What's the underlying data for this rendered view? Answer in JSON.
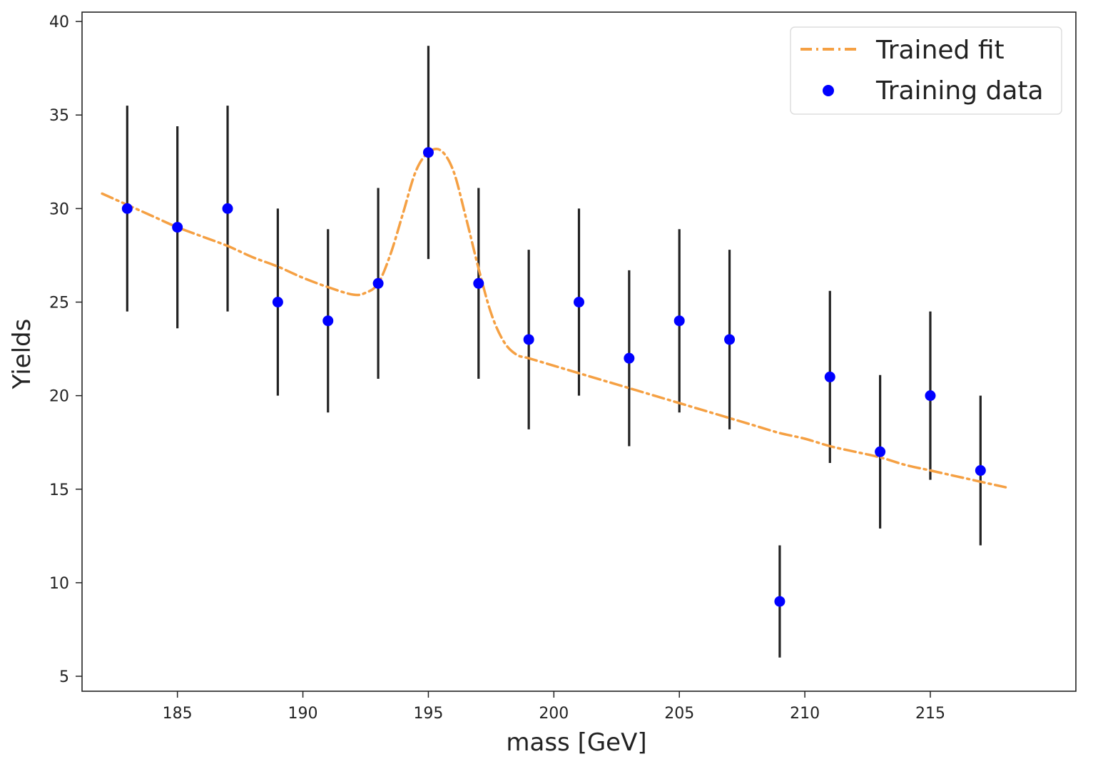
{
  "chart_data": {
    "type": "scatter",
    "title": "",
    "xlabel": "mass [GeV]",
    "ylabel": "Yields",
    "xlim": [
      181.2,
      220.8
    ],
    "ylim": [
      4.2,
      40.5
    ],
    "xticks": [
      185,
      190,
      195,
      200,
      205,
      210,
      215
    ],
    "yticks": [
      5,
      10,
      15,
      20,
      25,
      30,
      35,
      40
    ],
    "grid": false,
    "legend_position": "top-right",
    "colors": {
      "data": "#0000ff",
      "fit": "#f5a043",
      "errorbar": "#222222"
    },
    "series": [
      {
        "name": "Trained fit",
        "kind": "line",
        "style": "dash-dot",
        "x": [
          182,
          183,
          184,
          185,
          186,
          187,
          188,
          189,
          190,
          191,
          192,
          192.5,
          193,
          193.5,
          194,
          194.5,
          195,
          195.5,
          196,
          196.5,
          197,
          197.5,
          198,
          198.5,
          199,
          200,
          201,
          202,
          203,
          204,
          205,
          206,
          207,
          208,
          209,
          210,
          211,
          212,
          213,
          214,
          215,
          216,
          217,
          218
        ],
        "y": [
          30.8,
          30.2,
          29.6,
          29.0,
          28.5,
          28.0,
          27.4,
          26.9,
          26.3,
          25.8,
          25.4,
          25.5,
          26.0,
          27.6,
          29.8,
          32.0,
          33.0,
          33.1,
          32.0,
          29.5,
          26.8,
          24.4,
          22.9,
          22.2,
          22.0,
          21.6,
          21.2,
          20.8,
          20.4,
          20.0,
          19.6,
          19.2,
          18.8,
          18.4,
          18.0,
          17.7,
          17.3,
          17.0,
          16.7,
          16.3,
          16.0,
          15.7,
          15.4,
          15.1
        ]
      },
      {
        "name": "Training data",
        "kind": "errorbar",
        "x": [
          183,
          185,
          187,
          189,
          191,
          193,
          195,
          197,
          199,
          201,
          203,
          205,
          207,
          209,
          211,
          213,
          215,
          217
        ],
        "y": [
          30,
          29,
          30,
          25,
          24,
          26,
          33,
          26,
          23,
          25,
          22,
          24,
          23,
          9,
          21,
          17,
          20,
          16
        ],
        "yerr_low": [
          24.5,
          23.6,
          24.5,
          20.0,
          19.1,
          20.9,
          27.3,
          20.9,
          18.2,
          20.0,
          17.3,
          19.1,
          18.2,
          6.0,
          16.4,
          12.9,
          15.5,
          12.0
        ],
        "yerr_high": [
          35.5,
          34.4,
          35.5,
          30.0,
          28.9,
          31.1,
          38.7,
          31.1,
          27.8,
          30.0,
          26.7,
          28.9,
          27.8,
          12.0,
          25.6,
          21.1,
          24.5,
          20.0
        ]
      }
    ]
  }
}
